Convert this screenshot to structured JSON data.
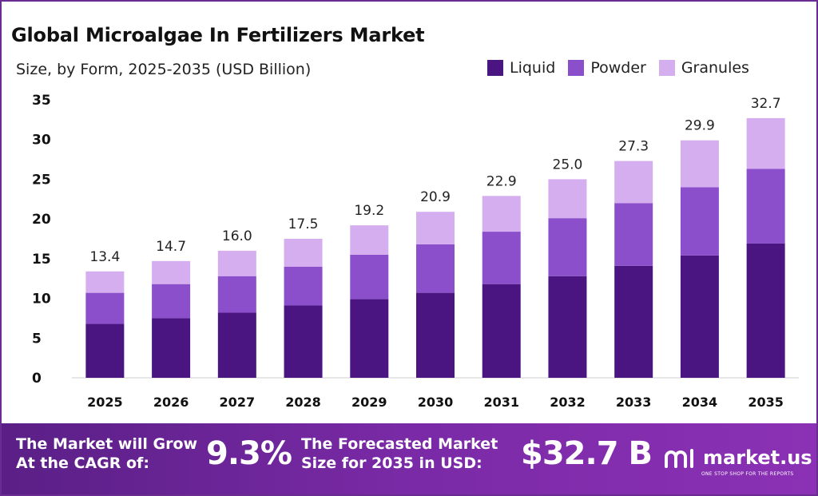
{
  "header": {
    "title": "Global Microalgae In Fertilizers Market",
    "subtitle": "Size, by Form, 2025-2035 (USD Billion)"
  },
  "colors": {
    "liquid": "#4a1580",
    "powder": "#8b4fcb",
    "granules": "#d5aef0",
    "footer": "#6a2c91"
  },
  "chart_data": {
    "type": "bar",
    "stacked": true,
    "categories": [
      "2025",
      "2026",
      "2027",
      "2028",
      "2029",
      "2030",
      "2031",
      "2032",
      "2033",
      "2034",
      "2035"
    ],
    "series": [
      {
        "name": "Liquid",
        "values": [
          6.8,
          7.5,
          8.2,
          9.1,
          9.9,
          10.7,
          11.8,
          12.8,
          14.1,
          15.4,
          16.9
        ]
      },
      {
        "name": "Powder",
        "values": [
          3.9,
          4.3,
          4.6,
          4.9,
          5.6,
          6.1,
          6.6,
          7.3,
          7.9,
          8.6,
          9.4
        ]
      },
      {
        "name": "Granules",
        "values": [
          2.7,
          2.9,
          3.2,
          3.5,
          3.7,
          4.1,
          4.5,
          4.9,
          5.3,
          5.9,
          6.4
        ]
      }
    ],
    "totals": [
      "13.4",
      "14.7",
      "16.0",
      "17.5",
      "19.2",
      "20.9",
      "22.9",
      "25.0",
      "27.3",
      "29.9",
      "32.7"
    ],
    "yticks": [
      "0",
      "5",
      "10",
      "15",
      "20",
      "25",
      "30",
      "35"
    ],
    "ylim": [
      0,
      35
    ],
    "legend_position": "top-right"
  },
  "footer": {
    "cagr_label_line1": "The Market will Grow",
    "cagr_label_line2": "At the CAGR of:",
    "cagr_value": "9.3%",
    "forecast_label_line1": "The Forecasted Market",
    "forecast_label_line2": "Size for 2035 in USD:",
    "forecast_value": "$32.7 B",
    "brand_name": "market.us",
    "brand_tagline": "ONE STOP SHOP FOR THE REPORTS"
  }
}
